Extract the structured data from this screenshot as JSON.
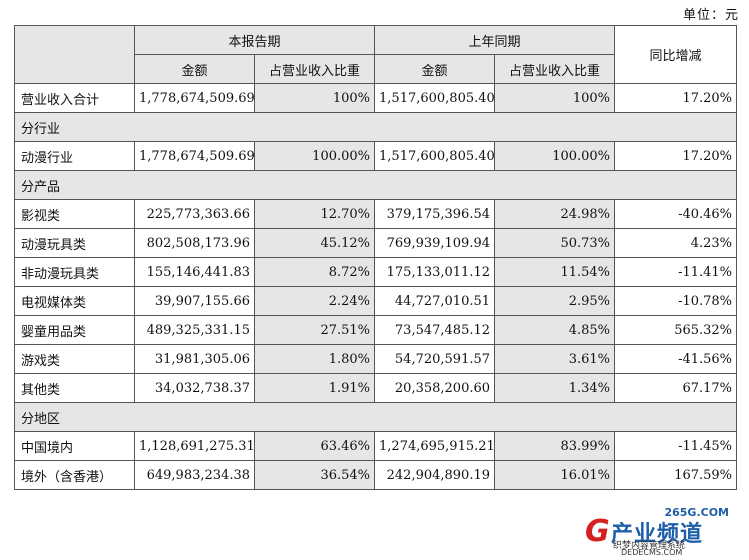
{
  "unit_label": "单位：元",
  "header": {
    "current_period": "本报告期",
    "prior_period": "上年同期",
    "yoy": "同比增减",
    "amount": "金额",
    "share": "占营业收入比重"
  },
  "rows": [
    {
      "type": "data",
      "label": "营业收入合计",
      "cur_amount": "1,778,674,509.69",
      "cur_share": "100%",
      "prev_amount": "1,517,600,805.40",
      "prev_share": "100%",
      "yoy": "17.20%"
    },
    {
      "type": "section",
      "label": "分行业"
    },
    {
      "type": "data",
      "label": "动漫行业",
      "cur_amount": "1,778,674,509.69",
      "cur_share": "100.00%",
      "prev_amount": "1,517,600,805.40",
      "prev_share": "100.00%",
      "yoy": "17.20%"
    },
    {
      "type": "section",
      "label": "分产品"
    },
    {
      "type": "data",
      "label": "影视类",
      "cur_amount": "225,773,363.66",
      "cur_share": "12.70%",
      "prev_amount": "379,175,396.54",
      "prev_share": "24.98%",
      "yoy": "-40.46%"
    },
    {
      "type": "data",
      "label": "动漫玩具类",
      "cur_amount": "802,508,173.96",
      "cur_share": "45.12%",
      "prev_amount": "769,939,109.94",
      "prev_share": "50.73%",
      "yoy": "4.23%"
    },
    {
      "type": "data",
      "label": "非动漫玩具类",
      "cur_amount": "155,146,441.83",
      "cur_share": "8.72%",
      "prev_amount": "175,133,011.12",
      "prev_share": "11.54%",
      "yoy": "-11.41%"
    },
    {
      "type": "data",
      "label": "电视媒体类",
      "cur_amount": "39,907,155.66",
      "cur_share": "2.24%",
      "prev_amount": "44,727,010.51",
      "prev_share": "2.95%",
      "yoy": "-10.78%"
    },
    {
      "type": "data",
      "label": "婴童用品类",
      "cur_amount": "489,325,331.15",
      "cur_share": "27.51%",
      "prev_amount": "73,547,485.12",
      "prev_share": "4.85%",
      "yoy": "565.32%"
    },
    {
      "type": "data",
      "label": "游戏类",
      "cur_amount": "31,981,305.06",
      "cur_share": "1.80%",
      "prev_amount": "54,720,591.57",
      "prev_share": "3.61%",
      "yoy": "-41.56%"
    },
    {
      "type": "data",
      "label": "其他类",
      "cur_amount": "34,032,738.37",
      "cur_share": "1.91%",
      "prev_amount": "20,358,200.60",
      "prev_share": "1.34%",
      "yoy": "67.17%"
    },
    {
      "type": "section",
      "label": "分地区"
    },
    {
      "type": "data",
      "label": "中国境内",
      "cur_amount": "1,128,691,275.31",
      "cur_share": "63.46%",
      "prev_amount": "1,274,695,915.21",
      "prev_share": "83.99%",
      "yoy": "-11.45%"
    },
    {
      "type": "data",
      "label": "境外（含香港）",
      "cur_amount": "649,983,234.38",
      "cur_share": "36.54%",
      "prev_amount": "242,904,890.19",
      "prev_share": "16.01%",
      "yoy": "167.59%"
    }
  ],
  "watermark": {
    "domain": "265G.COM",
    "letter": "G",
    "brand": "产业频道",
    "tagline": "织梦内容管理系统",
    "url": "DEDECMS.COM"
  }
}
